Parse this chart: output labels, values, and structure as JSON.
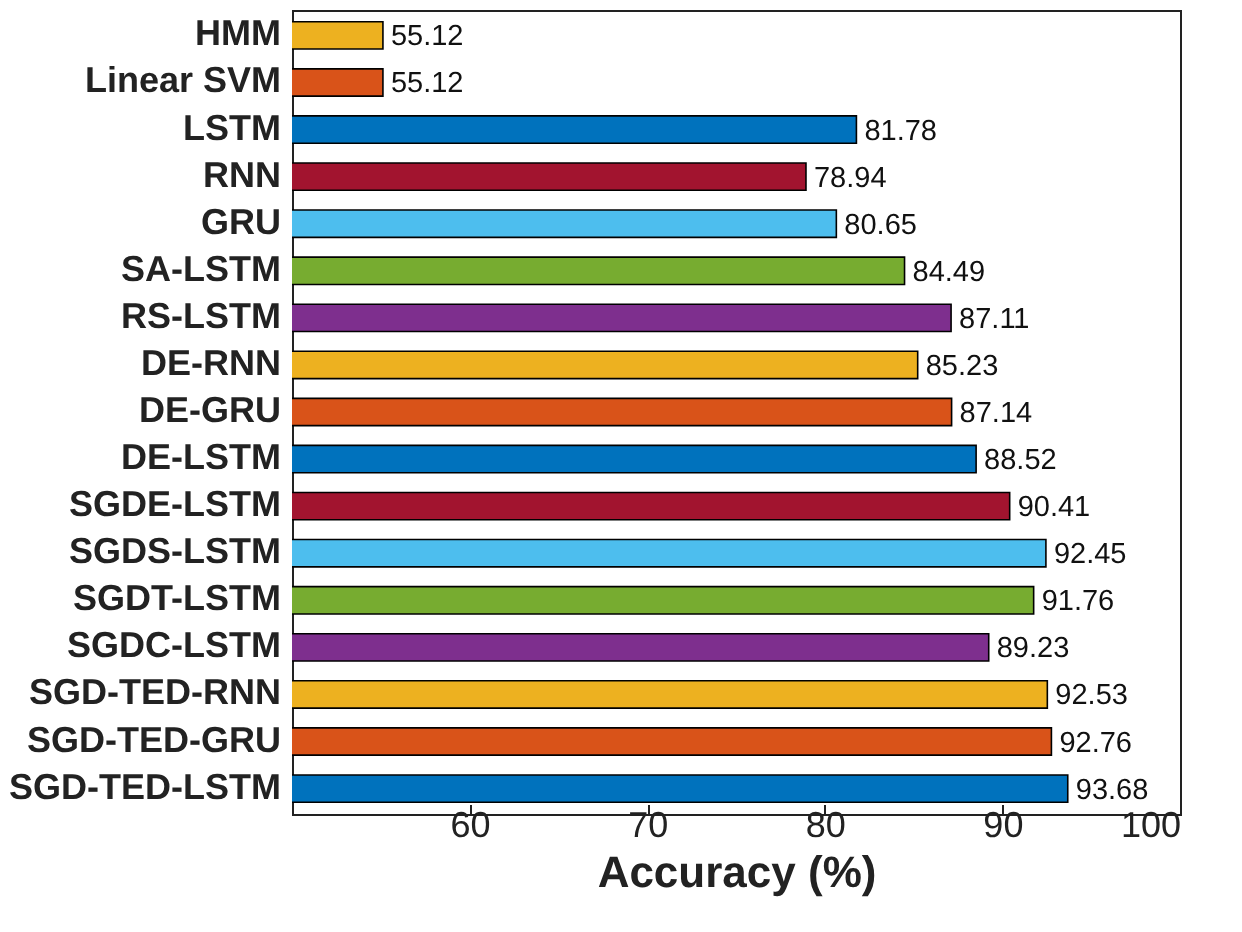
{
  "chart_data": {
    "type": "bar",
    "orientation": "horizontal",
    "xlabel": "Accuracy (%)",
    "categories": [
      "HMM",
      "Linear SVM",
      "LSTM",
      "RNN",
      "GRU",
      "SA-LSTM",
      "RS-LSTM",
      "DE-RNN",
      "DE-GRU",
      "DE-LSTM",
      "SGDE-LSTM",
      "SGDS-LSTM",
      "SGDT-LSTM",
      "SGDC-LSTM",
      "SGD-TED-RNN",
      "SGD-TED-GRU",
      "SGD-TED-LSTM"
    ],
    "values": [
      55.12,
      55.12,
      81.78,
      78.94,
      80.65,
      84.49,
      87.11,
      85.23,
      87.14,
      88.52,
      90.41,
      92.45,
      91.76,
      89.23,
      92.53,
      92.76,
      93.68
    ],
    "colors": [
      "#edb120",
      "#d95319",
      "#0072bd",
      "#a2142f",
      "#4dbeee",
      "#77ac30",
      "#7e2f8e",
      "#edb120",
      "#d95319",
      "#0072bd",
      "#a2142f",
      "#4dbeee",
      "#77ac30",
      "#7e2f8e",
      "#edb120",
      "#d95319",
      "#0072bd"
    ],
    "xlim": [
      50,
      100
    ],
    "xticks": [
      60,
      70,
      80,
      90,
      100
    ],
    "data_labels": true,
    "grid": false
  }
}
